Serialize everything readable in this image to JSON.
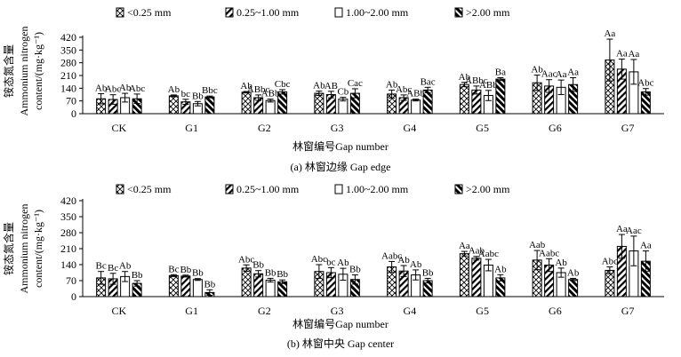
{
  "chart_data": [
    {
      "type": "bar",
      "panel_id": "a",
      "caption": "(a) 林窗边缘 Gap edge",
      "xlabel": "林窗编号Gap number",
      "ylabel_cn": "铵态氮含量",
      "ylabel_en_1": "Ammonium nitrogen",
      "ylabel_en_2": "content/(mg·kg⁻¹)",
      "ylim": [
        0,
        420
      ],
      "yticks": [
        "0",
        "70",
        "140",
        "210",
        "280",
        "350",
        "420"
      ],
      "categories": [
        "CK",
        "G1",
        "G2",
        "G3",
        "G4",
        "G5",
        "G6",
        "G7"
      ],
      "legend": [
        "<0.25 mm",
        "0.25~1.00 mm",
        "1.00~2.00 mm",
        ">2.00 mm"
      ],
      "series": [
        {
          "name": "<0.25 mm",
          "values": [
            82,
            98,
            118,
            112,
            108,
            160,
            170,
            295
          ],
          "errors": [
            28,
            5,
            4,
            12,
            22,
            12,
            42,
            115
          ],
          "labels": [
            "Ab",
            "Ab",
            "Ab",
            "Ab",
            "Ab",
            "Ab",
            "Ab",
            "Aa"
          ]
        },
        {
          "name": "0.25~1.00 mm",
          "values": [
            78,
            65,
            88,
            105,
            88,
            130,
            152,
            245
          ],
          "errors": [
            26,
            14,
            15,
            18,
            15,
            22,
            35,
            55
          ],
          "labels": [
            "Abc",
            "bc",
            "ABbc",
            "AB",
            "Abc",
            "ABbc",
            "Aac",
            "Aa"
          ]
        },
        {
          "name": "1.00~2.00 mm",
          "values": [
            88,
            55,
            72,
            80,
            75,
            100,
            145,
            230
          ],
          "errors": [
            24,
            12,
            8,
            10,
            5,
            28,
            40,
            68
          ],
          "labels": [
            "Ab",
            "Bb",
            "ABb",
            "Cb",
            "ABb",
            "ABb",
            "Aa",
            "Aa"
          ]
        },
        {
          "name": ">2.00 mm",
          "values": [
            82,
            92,
            120,
            112,
            130,
            190,
            160,
            120
          ],
          "errors": [
            26,
            5,
            12,
            25,
            15,
            8,
            38,
            18
          ],
          "labels": [
            "Abc",
            "Bbc",
            "Cbc",
            "Cac",
            "Bac",
            "Ba",
            "Aa",
            "Abc"
          ]
        }
      ]
    },
    {
      "type": "bar",
      "panel_id": "b",
      "caption": "(b) 林窗中央 Gap center",
      "xlabel": "林窗编号Gap number",
      "ylabel_cn": "铵态氮含量",
      "ylabel_en_1": "Ammonium nitrogen",
      "ylabel_en_2": "content/(mg·kg⁻¹)",
      "ylim": [
        0,
        420
      ],
      "yticks": [
        "0",
        "70",
        "140",
        "210",
        "280",
        "350",
        "420"
      ],
      "categories": [
        "CK",
        "G1",
        "G2",
        "G3",
        "G4",
        "G5",
        "G6",
        "G7"
      ],
      "legend": [
        "<0.25 mm",
        "0.25~1.00 mm",
        "1.00~2.00 mm",
        ">2.00 mm"
      ],
      "series": [
        {
          "name": "<0.25 mm",
          "values": [
            82,
            92,
            125,
            110,
            130,
            188,
            160,
            115
          ],
          "errors": [
            28,
            4,
            14,
            30,
            24,
            10,
            42,
            15
          ],
          "labels": [
            "Bc",
            "Bc",
            "Abc",
            "Abc",
            "Aabc",
            "Aa",
            "Aab",
            "Abc"
          ]
        },
        {
          "name": "0.25~1.00 mm",
          "values": [
            78,
            90,
            100,
            105,
            112,
            168,
            138,
            220
          ],
          "errors": [
            24,
            4,
            14,
            22,
            24,
            8,
            28,
            52
          ],
          "labels": [
            "Bc",
            "Bb",
            "Bb",
            "bc",
            "Ab",
            "Aab",
            "Aabc",
            "Aa"
          ]
        },
        {
          "name": "1.00~2.00 mm",
          "values": [
            88,
            75,
            72,
            98,
            95,
            138,
            105,
            200
          ],
          "errors": [
            22,
            4,
            8,
            26,
            22,
            25,
            20,
            65
          ],
          "labels": [
            "Ab",
            "Bb",
            "Bb",
            "Ab",
            "Ab",
            "Aabc",
            "Ab",
            "Aac"
          ]
        },
        {
          "name": ">2.00 mm",
          "values": [
            58,
            18,
            65,
            75,
            70,
            82,
            75,
            155
          ],
          "errors": [
            12,
            12,
            8,
            20,
            10,
            14,
            5,
            45
          ],
          "labels": [
            "Bb",
            "Bb",
            "Bb",
            "Bb",
            "Bb",
            "Ab",
            "Ab",
            "Aa"
          ]
        }
      ]
    }
  ]
}
